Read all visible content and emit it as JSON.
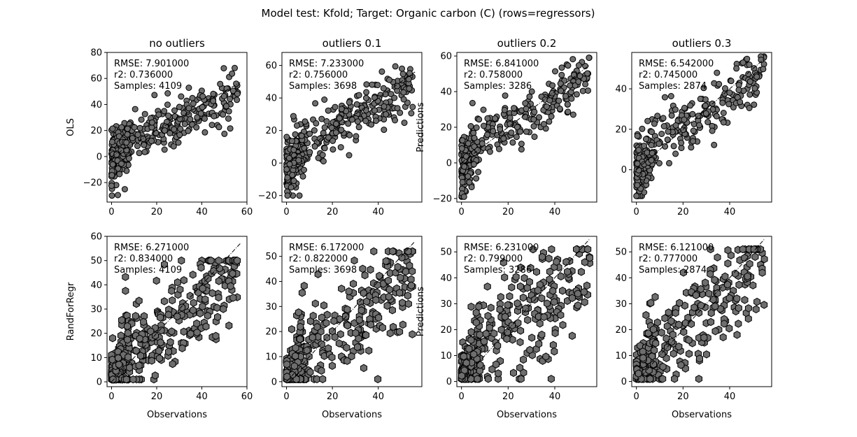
{
  "figure": {
    "title": "Model test: Kfold; Target: Organic carbon (C) (rows=regressors)"
  },
  "colors": {
    "marker_fill": "#6e6e6e",
    "marker_edge": "#000000",
    "axes_edge": "#000000",
    "identity_line": "#000000"
  },
  "chart_data": [
    {
      "type": "scatter",
      "panel": "ols-no-outliers",
      "marker": "circle",
      "title": "no outliers",
      "xlabel": "",
      "ylabel": "OLS",
      "xlim": [
        -2,
        60
      ],
      "ylim": [
        -35,
        80
      ],
      "xticks": [
        0,
        20,
        40,
        60
      ],
      "yticks": [
        -20,
        0,
        20,
        40,
        60,
        80
      ],
      "identity_line": [
        [
          0,
          0
        ],
        [
          57,
          57
        ]
      ],
      "x_max": 56,
      "y_min": -30,
      "y_max": 75,
      "n_points": 380,
      "spread": 9.0,
      "stats": {
        "rmse": "RMSE: 7.901000",
        "r2": "r2: 0.736000",
        "samples": "Samples: 4109"
      }
    },
    {
      "type": "scatter",
      "panel": "ols-outliers-0-1",
      "marker": "circle",
      "title": "outliers 0.1",
      "xlabel": "",
      "ylabel": "",
      "xlim": [
        -2,
        59
      ],
      "ylim": [
        -24,
        68
      ],
      "xticks": [
        0,
        20,
        40
      ],
      "yticks": [
        -20,
        0,
        20,
        40,
        60
      ],
      "identity_line": [
        [
          0,
          0
        ],
        [
          56,
          56
        ]
      ],
      "x_max": 55,
      "y_min": -20,
      "y_max": 64,
      "n_points": 360,
      "spread": 8.0,
      "stats": {
        "rmse": "RMSE: 7.233000",
        "r2": "r2: 0.756000",
        "samples": "Samples: 3698"
      }
    },
    {
      "type": "scatter",
      "panel": "ols-outliers-0-2",
      "marker": "circle",
      "title": "outliers 0.2",
      "xlabel": "",
      "ylabel": "Predictions",
      "xlim": [
        -2,
        58
      ],
      "ylim": [
        -22,
        62
      ],
      "xticks": [
        0,
        20,
        40
      ],
      "yticks": [
        -20,
        0,
        20,
        40,
        60
      ],
      "identity_line": [
        [
          0,
          0
        ],
        [
          55,
          55
        ]
      ],
      "x_max": 55,
      "y_min": -19,
      "y_max": 59,
      "n_points": 340,
      "spread": 7.5,
      "stats": {
        "rmse": "RMSE: 6.841000",
        "r2": "r2: 0.758000",
        "samples": "Samples: 3286"
      }
    },
    {
      "type": "scatter",
      "panel": "ols-outliers-0-3",
      "marker": "circle",
      "title": "outliers 0.3",
      "xlabel": "",
      "ylabel": "",
      "xlim": [
        -2,
        58
      ],
      "ylim": [
        -16,
        58
      ],
      "xticks": [
        0,
        20,
        40
      ],
      "yticks": [
        0,
        20,
        40
      ],
      "identity_line": [
        [
          0,
          0
        ],
        [
          55,
          55
        ]
      ],
      "x_max": 55,
      "y_min": -13,
      "y_max": 56,
      "n_points": 320,
      "spread": 7.2,
      "stats": {
        "rmse": "RMSE: 6.542000",
        "r2": "r2: 0.745000",
        "samples": "Samples: 2874"
      }
    },
    {
      "type": "scatter",
      "panel": "rf-no-outliers",
      "marker": "hexagon",
      "title": "",
      "xlabel": "Observations",
      "ylabel": "RandForRegr",
      "xlim": [
        -2,
        60
      ],
      "ylim": [
        -2,
        60
      ],
      "xticks": [
        0,
        20,
        40,
        60
      ],
      "yticks": [
        0,
        10,
        20,
        30,
        40,
        50,
        60
      ],
      "identity_line": [
        [
          0,
          0
        ],
        [
          57,
          57
        ]
      ],
      "x_max": 56,
      "y_min": 1,
      "y_max": 50,
      "n_points": 380,
      "spread": 8.0,
      "stats": {
        "rmse": "RMSE: 6.271000",
        "r2": "r2: 0.834000",
        "samples": "Samples: 4109"
      }
    },
    {
      "type": "scatter",
      "panel": "rf-outliers-0-1",
      "marker": "hexagon",
      "title": "",
      "xlabel": "Observations",
      "ylabel": "",
      "xlim": [
        -2,
        59
      ],
      "ylim": [
        -2,
        58
      ],
      "xticks": [
        0,
        20,
        40
      ],
      "yticks": [
        0,
        10,
        20,
        30,
        40,
        50
      ],
      "identity_line": [
        [
          0,
          0
        ],
        [
          56,
          56
        ]
      ],
      "x_max": 55,
      "y_min": 1,
      "y_max": 52,
      "n_points": 360,
      "spread": 7.5,
      "stats": {
        "rmse": "RMSE: 6.172000",
        "r2": "r2: 0.822000",
        "samples": "Samples: 3698"
      }
    },
    {
      "type": "scatter",
      "panel": "rf-outliers-0-2",
      "marker": "hexagon",
      "title": "",
      "xlabel": "Observations",
      "ylabel": "Predictions",
      "xlim": [
        -2,
        58
      ],
      "ylim": [
        -2,
        56
      ],
      "xticks": [
        0,
        20,
        40
      ],
      "yticks": [
        0,
        10,
        20,
        30,
        40,
        50
      ],
      "identity_line": [
        [
          0,
          0
        ],
        [
          55,
          55
        ]
      ],
      "x_max": 55,
      "y_min": 1,
      "y_max": 51,
      "n_points": 340,
      "spread": 8.0,
      "stats": {
        "rmse": "RMSE: 6.231000",
        "r2": "r2: 0.799000",
        "samples": "Samples: 3286"
      }
    },
    {
      "type": "scatter",
      "panel": "rf-outliers-0-3",
      "marker": "hexagon",
      "title": "",
      "xlabel": "Observations",
      "ylabel": "",
      "xlim": [
        -2,
        58
      ],
      "ylim": [
        -2,
        56
      ],
      "xticks": [
        0,
        20,
        40
      ],
      "yticks": [
        0,
        10,
        20,
        30,
        40,
        50
      ],
      "identity_line": [
        [
          0,
          0
        ],
        [
          55,
          55
        ]
      ],
      "x_max": 55,
      "y_min": 1,
      "y_max": 51,
      "n_points": 320,
      "spread": 7.5,
      "stats": {
        "rmse": "RMSE: 6.121000",
        "r2": "r2: 0.777000",
        "samples": "Samples: 2874"
      }
    }
  ]
}
